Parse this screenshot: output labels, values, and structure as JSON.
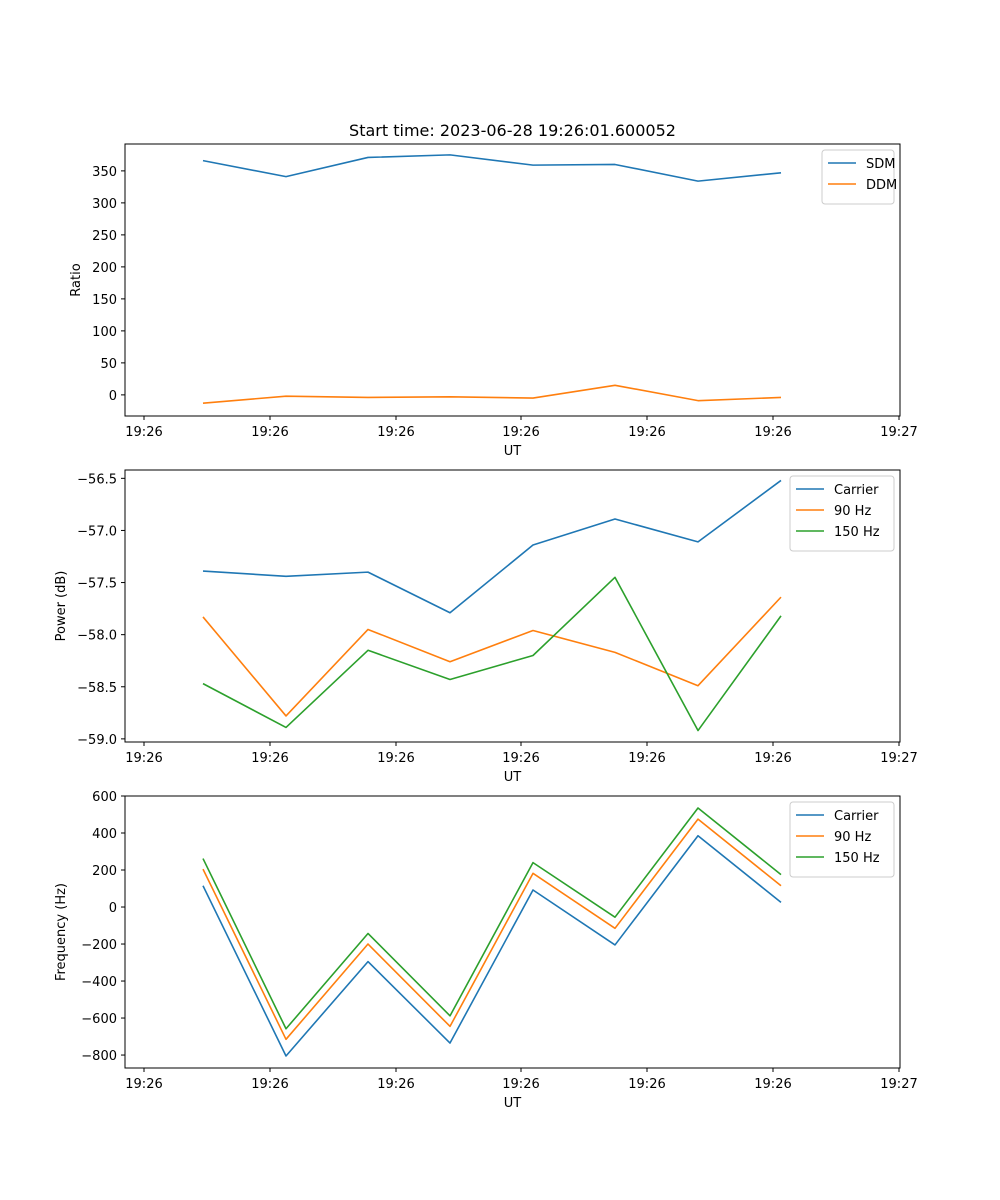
{
  "figure": {
    "title": "Start time: 2023-06-28 19:26:01.600052"
  },
  "chart_data": [
    {
      "type": "line",
      "xlabel": "UT",
      "ylabel": "Ratio",
      "x_tick_labels": [
        "19:26",
        "19:26",
        "19:26",
        "19:26",
        "19:26",
        "19:26",
        "19:27"
      ],
      "ylim": [
        -33,
        392
      ],
      "y_ticks": [
        0,
        50,
        100,
        150,
        200,
        250,
        300,
        350
      ],
      "legend": "top-right",
      "x_count": 8,
      "series": [
        {
          "name": "SDM",
          "color": "#1f77b4",
          "values": [
            366,
            341,
            371,
            375,
            359,
            360,
            334,
            347
          ]
        },
        {
          "name": "DDM",
          "color": "#ff7f0e",
          "values": [
            -13,
            -2,
            -4,
            -3,
            -5,
            15,
            -9,
            -4
          ]
        }
      ]
    },
    {
      "type": "line",
      "xlabel": "UT",
      "ylabel": "Power (dB)",
      "x_tick_labels": [
        "19:26",
        "19:26",
        "19:26",
        "19:26",
        "19:26",
        "19:26",
        "19:27"
      ],
      "ylim": [
        -59.03,
        -56.42
      ],
      "y_ticks": [
        -59.0,
        -58.5,
        -58.0,
        -57.5,
        -57.0,
        -56.5
      ],
      "y_tick_labels": [
        "−59.0",
        "−58.5",
        "−58.0",
        "−57.5",
        "−57.0",
        "−56.5"
      ],
      "legend": "top-right",
      "x_count": 8,
      "series": [
        {
          "name": "Carrier",
          "color": "#1f77b4",
          "values": [
            -57.39,
            -57.44,
            -57.4,
            -57.79,
            -57.14,
            -56.89,
            -57.11,
            -56.52
          ]
        },
        {
          "name": "90 Hz",
          "color": "#ff7f0e",
          "values": [
            -57.83,
            -58.78,
            -57.95,
            -58.26,
            -57.96,
            -58.17,
            -58.49,
            -57.64
          ]
        },
        {
          "name": "150 Hz",
          "color": "#2ca02c",
          "values": [
            -58.47,
            -58.89,
            -58.15,
            -58.43,
            -58.2,
            -57.45,
            -58.92,
            -57.82
          ]
        }
      ]
    },
    {
      "type": "line",
      "xlabel": "UT",
      "ylabel": "Frequency (Hz)",
      "x_tick_labels": [
        "19:26",
        "19:26",
        "19:26",
        "19:26",
        "19:26",
        "19:26",
        "19:27"
      ],
      "ylim": [
        -870,
        600
      ],
      "y_ticks": [
        -800,
        -600,
        -400,
        -200,
        0,
        200,
        400,
        600
      ],
      "y_tick_labels": [
        "−800",
        "−600",
        "−400",
        "−200",
        "0",
        "200",
        "400",
        "600"
      ],
      "legend": "top-right",
      "x_count": 8,
      "series": [
        {
          "name": "Carrier",
          "color": "#1f77b4",
          "values": [
            115,
            -805,
            -295,
            -735,
            92,
            -205,
            385,
            25
          ]
        },
        {
          "name": "90 Hz",
          "color": "#ff7f0e",
          "values": [
            205,
            -715,
            -200,
            -645,
            182,
            -115,
            475,
            115
          ]
        },
        {
          "name": "150 Hz",
          "color": "#2ca02c",
          "values": [
            262,
            -658,
            -143,
            -588,
            240,
            -55,
            535,
            175
          ]
        }
      ]
    }
  ]
}
